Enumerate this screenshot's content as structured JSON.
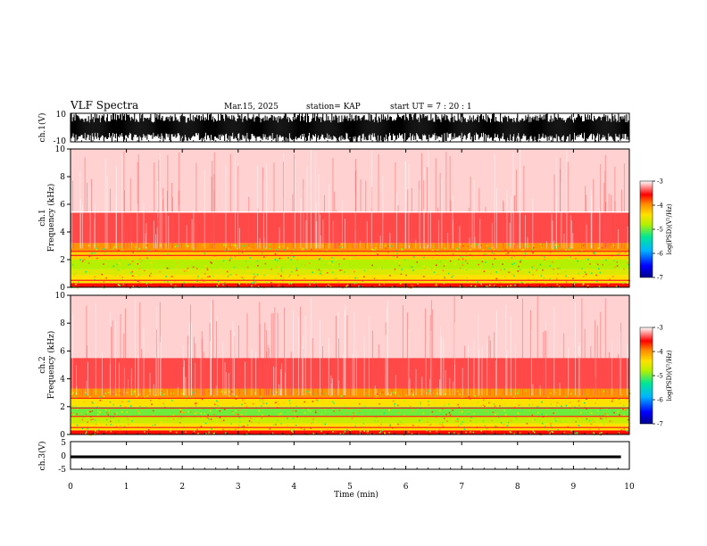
{
  "header": {
    "title": "VLF Spectra",
    "date": "Mar.15, 2025",
    "station": "station= KAP",
    "start": "start  UT =   7 : 20 : 1"
  },
  "axes": {
    "ch1_wave_label": "ch.1(V)",
    "ch1_spec_label": "ch.1",
    "ch1_freq_label": "Frequency  (kHz)",
    "ch2_spec_label": "ch.2",
    "ch2_freq_label": "Frequency  (kHz)",
    "ch3_wave_label": "ch.3(V)",
    "x_label": "Time  (min)",
    "colorbar_label": "log(PSD)(V²/Hz)"
  },
  "colors": {
    "scale": [
      "#0000c8",
      "#00b4ff",
      "#00e696",
      "#b4f000",
      "#ffe100",
      "#ff8c00",
      "#ff0000",
      "#ffffff"
    ]
  },
  "chart_data": [
    {
      "type": "line",
      "name": "ch1-waveform",
      "ylabel": "ch.1(V)",
      "ylim": [
        -10,
        10
      ],
      "yticks": [
        -10,
        10
      ],
      "xlim": [
        0,
        10
      ],
      "envelope": [
        -10,
        10
      ],
      "description_values": {
        "typical_range": [
          -10,
          10
        ]
      }
    },
    {
      "type": "heatmap",
      "name": "ch1-spectrogram",
      "ylabel": "Frequency  (kHz)",
      "ylim": [
        0,
        10
      ],
      "yticks": [
        0,
        2,
        4,
        6,
        8,
        10
      ],
      "xlim": [
        0,
        10
      ],
      "zlim": [
        -7,
        -3
      ],
      "bands": [
        {
          "f": [
            0.0,
            0.3
          ],
          "logpsd": -3.6
        },
        {
          "f": [
            0.3,
            0.9
          ],
          "logpsd": -4.4
        },
        {
          "f": [
            0.9,
            1.3
          ],
          "logpsd": -4.6
        },
        {
          "f": [
            1.3,
            2.0
          ],
          "logpsd": -4.8
        },
        {
          "f": [
            2.0,
            2.6
          ],
          "logpsd": -4.3
        },
        {
          "f": [
            2.6,
            3.2
          ],
          "logpsd": -4.0
        },
        {
          "f": [
            3.2,
            5.4
          ],
          "logpsd": -3.4
        },
        {
          "f": [
            5.4,
            10.0
          ],
          "logpsd": -3.1
        }
      ],
      "lines_khz": [
        0.5,
        2.3,
        2.6,
        5.45
      ]
    },
    {
      "type": "heatmap",
      "name": "ch2-spectrogram",
      "ylabel": "Frequency  (kHz)",
      "ylim": [
        0,
        10
      ],
      "yticks": [
        0,
        2,
        4,
        6,
        8,
        10
      ],
      "xlim": [
        0,
        10
      ],
      "zlim": [
        -7,
        -3
      ],
      "bands": [
        {
          "f": [
            0.0,
            0.3
          ],
          "logpsd": -3.6
        },
        {
          "f": [
            0.3,
            0.8
          ],
          "logpsd": -4.4
        },
        {
          "f": [
            0.8,
            1.3
          ],
          "logpsd": -4.7
        },
        {
          "f": [
            1.3,
            2.0
          ],
          "logpsd": -5.0
        },
        {
          "f": [
            2.0,
            2.6
          ],
          "logpsd": -4.4
        },
        {
          "f": [
            2.6,
            3.3
          ],
          "logpsd": -4.0
        },
        {
          "f": [
            3.3,
            5.5
          ],
          "logpsd": -3.4
        },
        {
          "f": [
            5.5,
            10.0
          ],
          "logpsd": -3.1
        }
      ],
      "lines_khz": [
        0.5,
        1.3,
        1.9,
        2.6
      ]
    },
    {
      "type": "line",
      "name": "ch3-waveform",
      "ylabel": "ch.3(V)",
      "ylim": [
        -5,
        5
      ],
      "yticks": [
        -5,
        0,
        5
      ],
      "xlim": [
        0,
        10
      ],
      "envelope": [
        -1.0,
        0.0
      ]
    },
    {
      "type": "heatmap",
      "name": "colorbar",
      "label": "log(PSD)(V²/Hz)",
      "zlim": [
        -7,
        -3
      ],
      "ticks": [
        -3,
        -4,
        -5,
        -6,
        -7
      ]
    }
  ],
  "xaxis": {
    "label": "Time  (min)",
    "ticks": [
      "0",
      "1",
      "2",
      "3",
      "4",
      "5",
      "6",
      "7",
      "8",
      "9",
      "10"
    ]
  }
}
